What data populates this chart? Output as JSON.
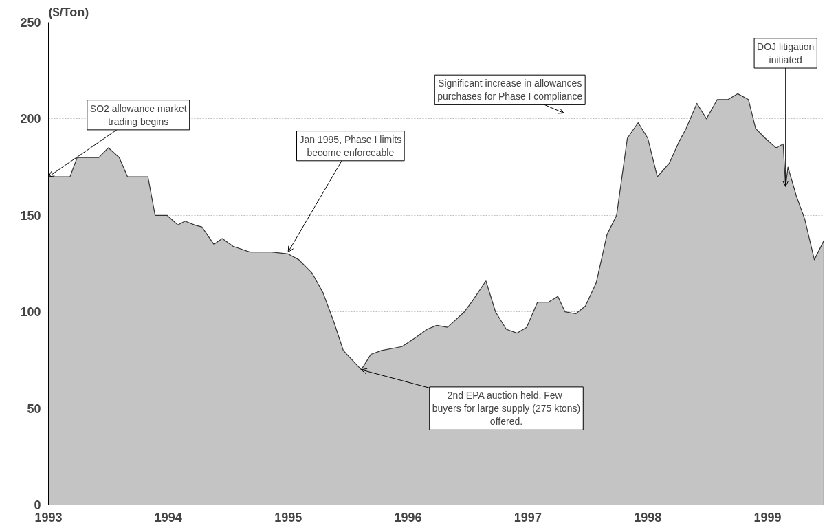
{
  "chart_data": {
    "type": "area",
    "ylabel": "($/Ton)",
    "x": [
      1993.0,
      1993.18,
      1993.24,
      1993.42,
      1993.5,
      1993.59,
      1993.66,
      1993.83,
      1993.89,
      1993.99,
      1994.08,
      1994.14,
      1994.22,
      1994.28,
      1994.38,
      1994.45,
      1994.54,
      1994.68,
      1994.86,
      1995.0,
      1995.09,
      1995.2,
      1995.29,
      1995.38,
      1995.46,
      1995.61,
      1995.69,
      1995.78,
      1995.95,
      1996.07,
      1996.16,
      1996.24,
      1996.33,
      1996.47,
      1996.53,
      1996.65,
      1996.73,
      1996.82,
      1996.91,
      1996.99,
      1997.08,
      1997.17,
      1997.25,
      1997.31,
      1997.4,
      1997.48,
      1997.57,
      1997.66,
      1997.74,
      1997.83,
      1997.92,
      1998.0,
      1998.08,
      1998.18,
      1998.26,
      1998.32,
      1998.41,
      1998.49,
      1998.58,
      1998.67,
      1998.75,
      1998.84,
      1998.9,
      1998.98,
      1999.07,
      1999.13,
      1999.15,
      1999.17,
      1999.24,
      1999.31,
      1999.39,
      1999.47
    ],
    "series": [
      {
        "color": "#c4c4c4",
        "values": [
          170,
          170,
          180,
          180,
          185,
          180,
          170,
          170,
          150,
          150,
          145,
          147,
          145,
          144,
          135,
          138,
          134,
          131,
          131,
          130,
          127,
          120,
          110,
          95,
          80,
          70,
          78,
          80,
          82,
          87,
          91,
          93,
          92,
          100,
          105,
          116,
          100,
          91,
          89,
          92,
          105,
          105,
          108,
          100,
          99,
          103,
          115,
          140,
          150,
          190,
          198,
          190,
          170,
          177,
          188,
          195,
          208,
          200,
          210,
          210,
          213,
          210,
          195,
          190,
          185,
          187,
          165,
          175,
          160,
          148,
          127,
          137
        ]
      }
    ],
    "xlim": [
      1993,
      1999.47
    ],
    "xticks": [
      1993,
      1994,
      1995,
      1996,
      1997,
      1998,
      1999
    ],
    "ylim": [
      0,
      250
    ],
    "yticks": [
      0,
      50,
      100,
      150,
      200,
      250
    ],
    "grid": "y",
    "annotations": [
      {
        "text": "SO2 allowance market\ntrading begins",
        "x": 1993.0,
        "y": 170
      },
      {
        "text": "Jan 1995, Phase I limits\nbecome enforceable",
        "x": 1995.0,
        "y": 131
      },
      {
        "text": "2nd EPA auction held.  Few\nbuyers for large supply (275 ktons)\noffered.",
        "x": 1995.61,
        "y": 70
      },
      "Significant increase in allowances\npurchases for Phase I compliance",
      {
        "text": "DOJ litigation\ninitiated",
        "x": 1999.15,
        "y": 165
      }
    ]
  }
}
